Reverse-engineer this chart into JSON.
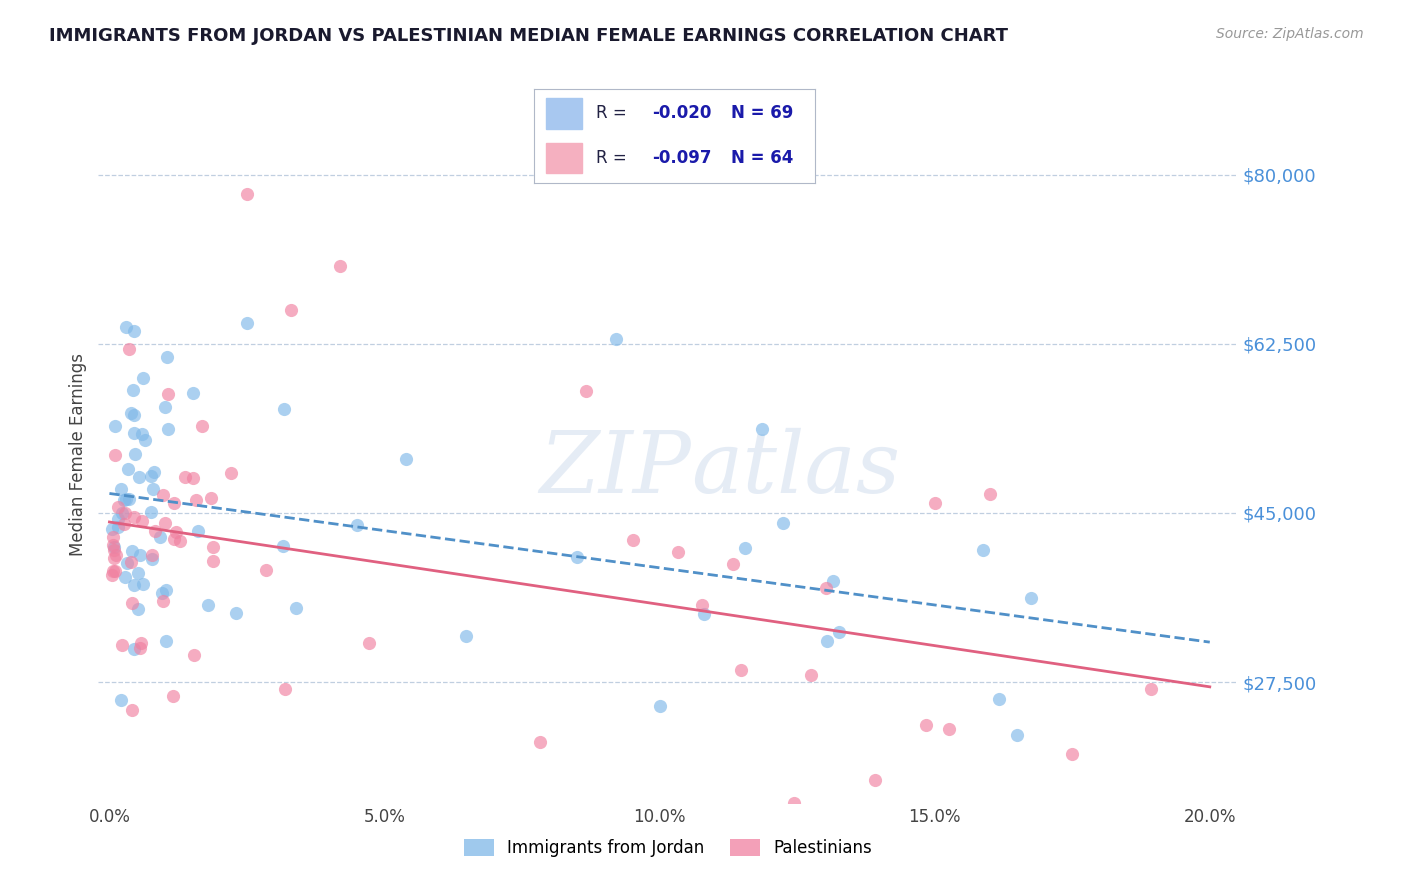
{
  "title": "IMMIGRANTS FROM JORDAN VS PALESTINIAN MEDIAN FEMALE EARNINGS CORRELATION CHART",
  "source": "Source: ZipAtlas.com",
  "ylabel": "Median Female Earnings",
  "legend_entries": [
    {
      "label": "Immigrants from Jordan",
      "R": "-0.020",
      "N": "69",
      "patch_color": "#a8c8f0",
      "dot_color": "#7fb8e8",
      "line_color": "#5090c8"
    },
    {
      "label": "Palestinians",
      "R": "-0.097",
      "N": "64",
      "patch_color": "#f5b0c0",
      "dot_color": "#f080a0",
      "line_color": "#e06080"
    }
  ],
  "yticks": [
    27500,
    45000,
    62500,
    80000
  ],
  "ytick_labels": [
    "$27,500",
    "$45,000",
    "$62,500",
    "$80,000"
  ],
  "ylim": [
    15000,
    87000
  ],
  "xlim": [
    -0.002,
    0.205
  ],
  "xticks": [
    0.0,
    0.05,
    0.1,
    0.15,
    0.2
  ],
  "xtick_labels": [
    "0.0%",
    "5.0%",
    "10.0%",
    "15.0%",
    "20.0%"
  ],
  "background_color": "#ffffff",
  "grid_color": "#c0cfe0",
  "watermark": "ZIPatlas",
  "title_color": "#1a1a2e",
  "source_color": "#999999",
  "axis_label_color": "#444444",
  "ytick_color": "#4a90d9",
  "xtick_color": "#444444",
  "legend_R_color": "#1a1aaa",
  "legend_N_color": "#1a1aaa"
}
